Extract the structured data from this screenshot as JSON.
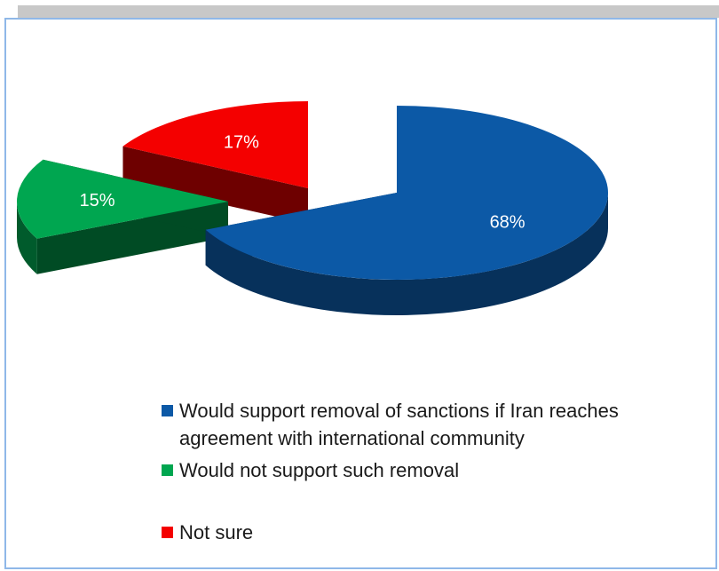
{
  "chart_data": {
    "type": "pie",
    "title": "",
    "series": [
      {
        "name": "Would support removal of sanctions if Iran reaches agreement with international community",
        "value": 68,
        "label": "68%",
        "color": "#0c59a6"
      },
      {
        "name": "Would not support such removal",
        "value": 15,
        "label": "15%",
        "color": "#00a650"
      },
      {
        "name": "Not sure",
        "value": 17,
        "label": "17%",
        "color": "#f40000"
      }
    ],
    "legend_position": "bottom",
    "style": "3d-exploded"
  }
}
